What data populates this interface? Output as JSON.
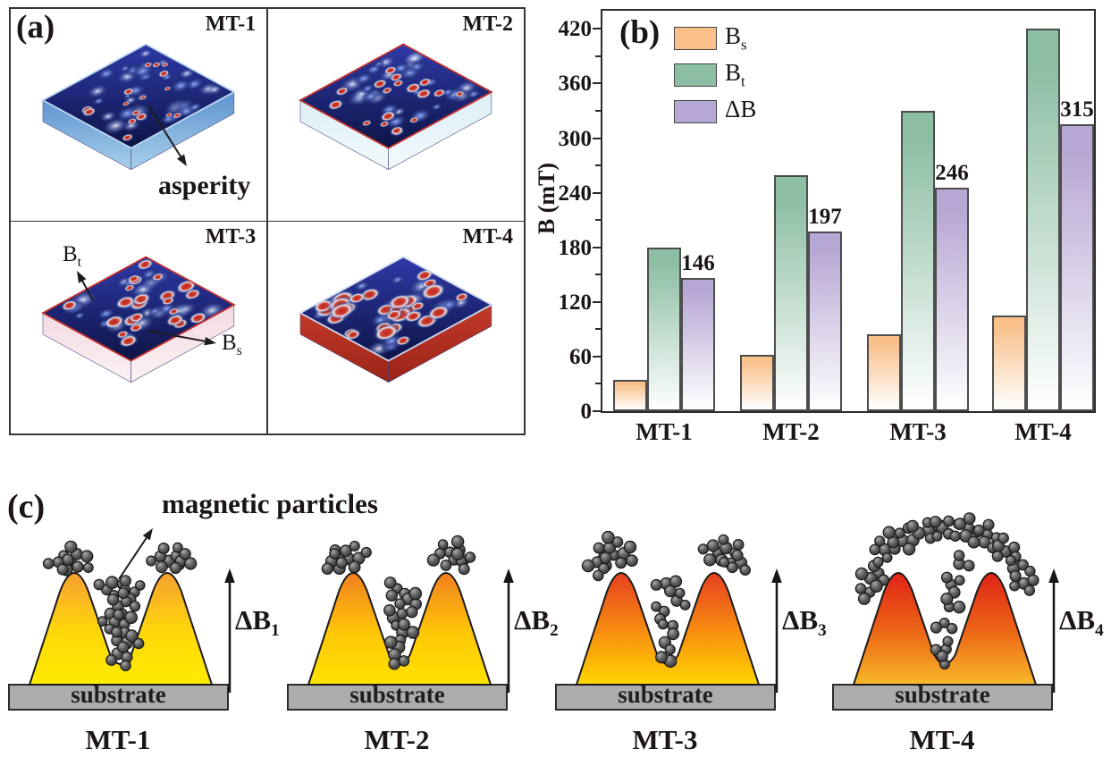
{
  "figure": {
    "background": "#ffffff",
    "panel_a": {
      "label": "(a)",
      "tiles": [
        {
          "name": "MT-1"
        },
        {
          "name": "MT-2"
        },
        {
          "name": "MT-3"
        },
        {
          "name": "MT-4"
        }
      ],
      "annotations": {
        "asperity": "asperity",
        "bt_base": "B",
        "bt_sub": "t",
        "bs_base": "B",
        "bs_sub": "s"
      }
    },
    "panel_b": {
      "label": "(b)"
    },
    "panel_c": {
      "label": "(c)",
      "annotation": "magnetic particles",
      "items": [
        {
          "caption": "MT-1",
          "substrate": "substrate",
          "delta_base": "ΔB",
          "delta_sub": "1"
        },
        {
          "caption": "MT-2",
          "substrate": "substrate",
          "delta_base": "ΔB",
          "delta_sub": "2"
        },
        {
          "caption": "MT-3",
          "substrate": "substrate",
          "delta_base": "ΔB",
          "delta_sub": "3"
        },
        {
          "caption": "MT-4",
          "substrate": "substrate",
          "delta_base": "ΔB",
          "delta_sub": "4"
        }
      ]
    }
  },
  "chart_data": {
    "type": "bar",
    "title": "",
    "categories": [
      "MT-1",
      "MT-2",
      "MT-3",
      "MT-4"
    ],
    "series": [
      {
        "name": "Bs",
        "label_base": "B",
        "label_sub": "s",
        "color": "#F9C08A",
        "values": [
          34,
          62,
          84,
          105
        ],
        "show_values": false
      },
      {
        "name": "Bt",
        "label_base": "B",
        "label_sub": "t",
        "color": "#8CBEA4",
        "values": [
          180,
          259,
          330,
          420
        ],
        "show_values": false
      },
      {
        "name": "ΔB",
        "label_base": "ΔB",
        "label_sub": "",
        "color": "#B7A7D4",
        "values": [
          146,
          197,
          246,
          315
        ],
        "show_values": true
      }
    ],
    "xlabel": "",
    "ylabel": "B (mT)",
    "ylim": [
      0,
      440
    ],
    "yticks": [
      0,
      60,
      120,
      180,
      240,
      300,
      360,
      420
    ],
    "minor_tick_step": 30,
    "grid": false,
    "legend_position": "top-left",
    "bar_gradient_to": "#ffffff",
    "bar_border_color": "#4d4d4d",
    "axis_color": "#2b2b2b"
  }
}
